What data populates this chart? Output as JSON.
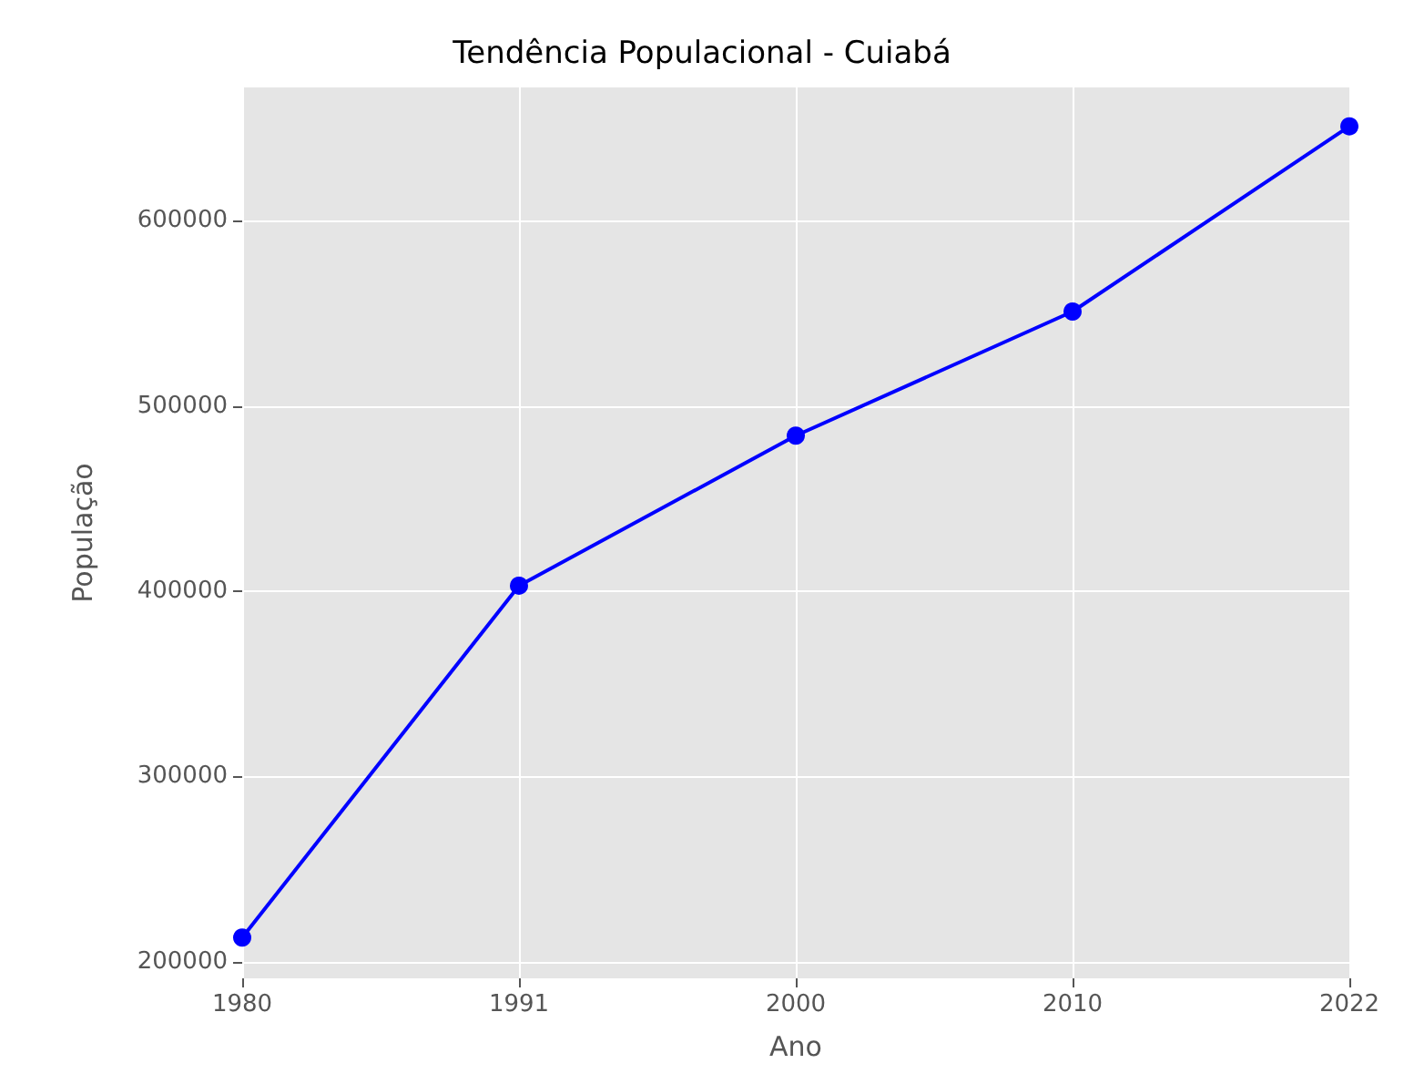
{
  "chart_data": {
    "type": "line",
    "title": "Tendência Populacional - Cuiabá",
    "xlabel": "Ano",
    "ylabel": "População",
    "categories": [
      "1980",
      "1991",
      "2000",
      "2010",
      "2022"
    ],
    "series": [
      {
        "color": "#0000ff",
        "values": [
          213000,
          403000,
          484000,
          551000,
          651000
        ]
      }
    ],
    "ylim": [
      191000,
      672000
    ],
    "yticks": [
      200000,
      300000,
      400000,
      500000,
      600000
    ],
    "grid": true,
    "marker": "circle",
    "line_style": "solid"
  }
}
